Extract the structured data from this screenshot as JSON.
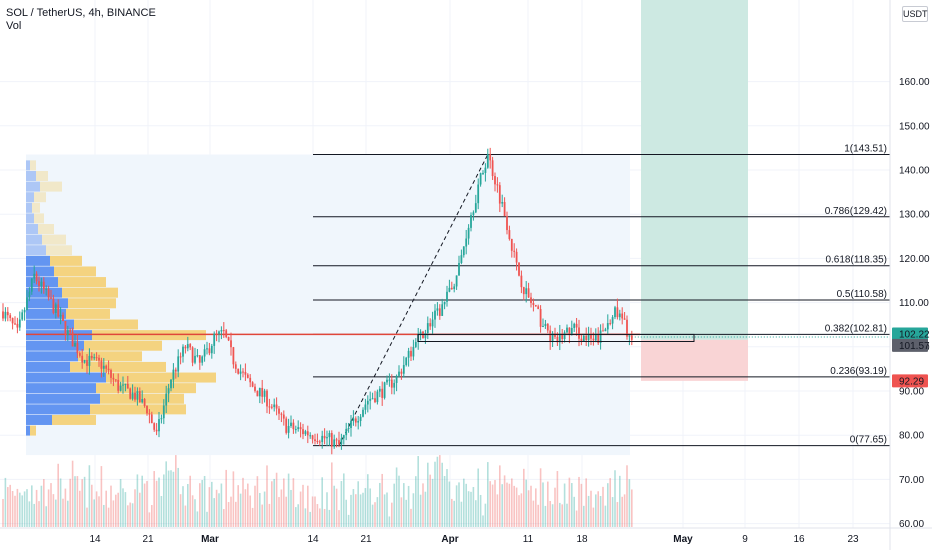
{
  "header": {
    "symbol_line": "SOL / TetherUS, 4h, BINANCE",
    "volume_label": "Vol"
  },
  "currency_button": "USDT",
  "colors": {
    "up": "#26a69a",
    "down": "#ef5350",
    "profit_zone": "#cde9e2",
    "loss_zone": "#f9d4d5",
    "range_box": "#f0f6fc",
    "vp_up": "#5b8ff0",
    "vp_down": "#f4cd6a"
  },
  "chart_data": {
    "type": "candlestick",
    "symbol": "SOL / TetherUS",
    "interval": "4h",
    "exchange": "BINANCE",
    "y_ticks": [
      60,
      70,
      80,
      90,
      100,
      110,
      120,
      130,
      140,
      150,
      160
    ],
    "y_tick_labels": [
      "60.00",
      "70.00",
      "80.00",
      "90.00",
      "100.00",
      "110.00",
      "120.00",
      "130.00",
      "140.00",
      "150.00",
      "160.00"
    ],
    "x_tick_labels": [
      "14",
      "21",
      "Mar",
      "14",
      "21",
      "Apr",
      "11",
      "18",
      "May",
      "9",
      "16",
      "23"
    ],
    "price_labels": [
      {
        "value": 102.22,
        "text": "102.22",
        "color": "#26a69a"
      },
      {
        "value": 101.57,
        "text": "101.57",
        "color": "#5d606b"
      },
      {
        "value": 92.29,
        "text": "92.29",
        "color": "#ef5350"
      }
    ],
    "fibonacci": [
      {
        "level": "1",
        "price": 143.51,
        "text": "1(143.51)"
      },
      {
        "level": "0.786",
        "price": 129.42,
        "text": "0.786(129.42)"
      },
      {
        "level": "0.618",
        "price": 118.35,
        "text": "0.618(118.35)"
      },
      {
        "level": "0.5",
        "price": 110.58,
        "text": "0.5(110.58)"
      },
      {
        "level": "0.382",
        "price": 102.81,
        "text": "0.382(102.81)"
      },
      {
        "level": "0.236",
        "price": 93.19,
        "text": "0.236(93.19)"
      },
      {
        "level": "0",
        "price": 77.65,
        "text": "0(77.65)"
      }
    ],
    "price_path": [
      [
        0,
        108
      ],
      [
        6,
        103
      ],
      [
        13,
        116
      ],
      [
        20,
        110
      ],
      [
        27,
        103
      ],
      [
        34,
        97
      ],
      [
        41,
        96
      ],
      [
        48,
        91
      ],
      [
        55,
        89
      ],
      [
        60,
        86
      ],
      [
        64,
        80
      ],
      [
        70,
        93
      ],
      [
        76,
        100
      ],
      [
        82,
        96
      ],
      [
        88,
        102
      ],
      [
        92,
        103
      ],
      [
        96,
        97
      ],
      [
        102,
        92
      ],
      [
        110,
        88
      ],
      [
        118,
        82
      ],
      [
        124,
        81
      ],
      [
        130,
        80
      ],
      [
        136,
        79
      ],
      [
        140,
        77.65
      ],
      [
        146,
        83
      ],
      [
        152,
        88
      ],
      [
        158,
        90
      ],
      [
        164,
        93
      ],
      [
        170,
        99
      ],
      [
        176,
        104
      ],
      [
        182,
        108
      ],
      [
        186,
        112
      ],
      [
        190,
        118
      ],
      [
        194,
        128
      ],
      [
        198,
        136
      ],
      [
        202,
        143.51
      ],
      [
        206,
        136
      ],
      [
        210,
        128
      ],
      [
        214,
        118
      ],
      [
        218,
        112
      ],
      [
        222,
        108
      ],
      [
        226,
        104
      ],
      [
        230,
        101
      ],
      [
        234,
        103
      ],
      [
        238,
        104
      ],
      [
        242,
        102
      ],
      [
        246,
        101
      ],
      [
        250,
        103
      ],
      [
        254,
        108
      ],
      [
        258,
        106
      ],
      [
        262,
        101.5
      ]
    ],
    "trade_position": {
      "entry": 101.57,
      "target": 163.0,
      "stop": 92.29
    },
    "consolidation_box": [
      101.2,
      102.8
    ],
    "volume_profile": [
      {
        "price": 141,
        "up": 4,
        "down": 6
      },
      {
        "price": 138.6,
        "up": 10,
        "down": 12
      },
      {
        "price": 136.2,
        "up": 14,
        "down": 22
      },
      {
        "price": 133.8,
        "up": 8,
        "down": 12
      },
      {
        "price": 131.4,
        "up": 6,
        "down": 8
      },
      {
        "price": 129,
        "up": 8,
        "down": 10
      },
      {
        "price": 126.6,
        "up": 12,
        "down": 16
      },
      {
        "price": 124.2,
        "up": 16,
        "down": 24
      },
      {
        "price": 121.8,
        "up": 20,
        "down": 26
      },
      {
        "price": 119.4,
        "up": 24,
        "down": 32
      },
      {
        "price": 117,
        "up": 28,
        "down": 42
      },
      {
        "price": 114.6,
        "up": 32,
        "down": 48
      },
      {
        "price": 112.2,
        "up": 36,
        "down": 56
      },
      {
        "price": 109.8,
        "up": 42,
        "down": 48
      },
      {
        "price": 107.4,
        "up": 40,
        "down": 44
      },
      {
        "price": 105,
        "up": 48,
        "down": 64
      },
      {
        "price": 102.6,
        "up": 66,
        "down": 114
      },
      {
        "price": 100.2,
        "up": 58,
        "down": 78
      },
      {
        "price": 97.8,
        "up": 52,
        "down": 64
      },
      {
        "price": 95.4,
        "up": 44,
        "down": 96
      },
      {
        "price": 93,
        "up": 80,
        "down": 110
      },
      {
        "price": 90.6,
        "up": 70,
        "down": 100
      },
      {
        "price": 88.2,
        "up": 74,
        "down": 84
      },
      {
        "price": 85.8,
        "up": 64,
        "down": 96
      },
      {
        "price": 83.4,
        "up": 26,
        "down": 44
      },
      {
        "price": 81,
        "up": 4,
        "down": 6
      }
    ]
  }
}
